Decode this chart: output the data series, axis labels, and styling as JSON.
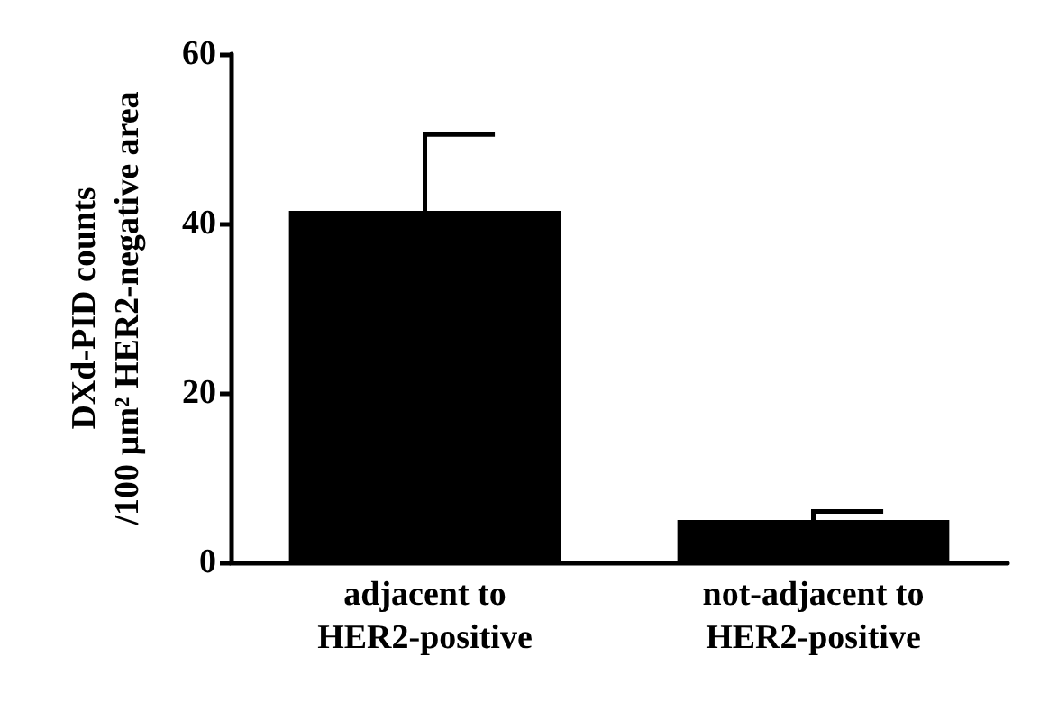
{
  "chart_data": {
    "type": "bar",
    "ylabel": "DXd-PID counts\n/100 µm² HER2-negative area",
    "categories": [
      "adjacent to\nHER2-positive",
      "not-adjacent to\nHER2-positive"
    ],
    "values": [
      41.5,
      5
    ],
    "errors": [
      9,
      1
    ],
    "color": "#000000",
    "ylim": [
      0,
      60
    ],
    "yticks": [
      0,
      20,
      40,
      60
    ],
    "grid": false
  }
}
